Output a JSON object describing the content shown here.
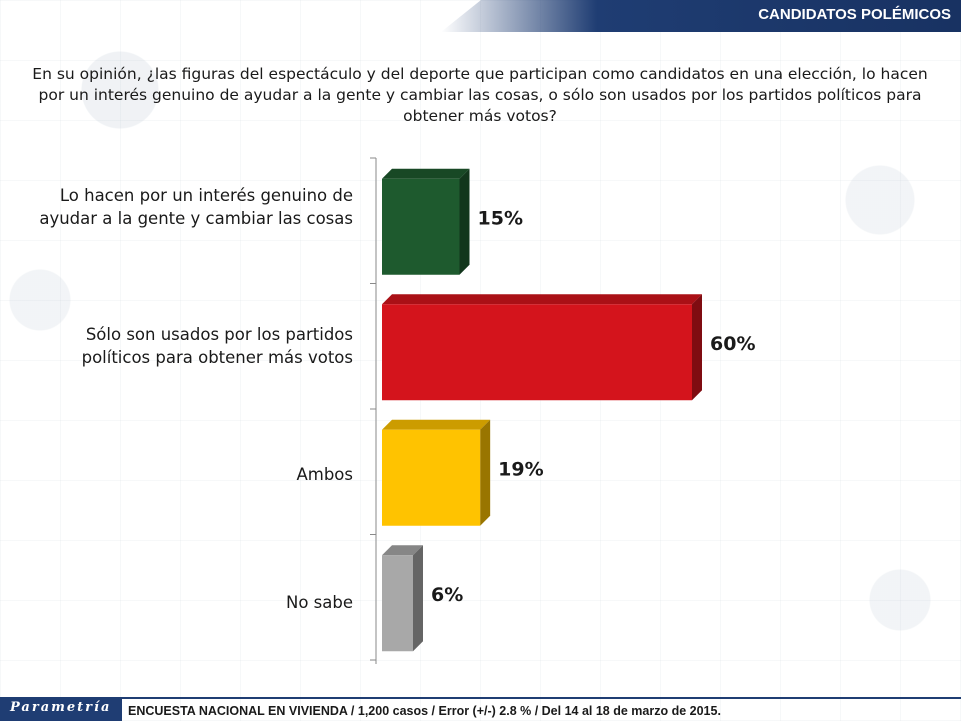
{
  "header": {
    "title": "CANDIDATOS POLÉMICOS"
  },
  "question": "En su opinión, ¿las figuras del espectáculo y del deporte que participan como candidatos en una elección, lo hacen por un interés genuino de ayudar a la gente y cambiar las cosas, o sólo son usados por los partidos políticos para obtener más votos?",
  "labels": {
    "cat0": "Lo hacen por un interés genuino de ayudar a la gente y cambiar las cosas",
    "cat1": "Sólo son usados por los partidos políticos para obtener más votos",
    "cat2": "Ambos",
    "cat3": "No sabe"
  },
  "chart_data": {
    "type": "bar",
    "orientation": "horizontal",
    "categories": [
      "Lo hacen por un interés genuino de ayudar a la gente y cambiar las cosas",
      "Sólo son usados por los partidos políticos para obtener más votos",
      "Ambos",
      "No sabe"
    ],
    "values": [
      15,
      60,
      19,
      6
    ],
    "value_labels": [
      "15%",
      "60%",
      "19%",
      "6%"
    ],
    "colors": [
      "#1e5a2e",
      "#d4141c",
      "#ffc300",
      "#a8a8a8"
    ],
    "xlim": [
      0,
      60
    ],
    "grid": false,
    "legend": "none"
  },
  "footer": {
    "logo": "Parametría",
    "note": "ENCUESTA NACIONAL EN VIVIENDA / 1,200 casos / Error (+/-) 2.8 % / Del 14 al 18 de marzo de 2015."
  }
}
